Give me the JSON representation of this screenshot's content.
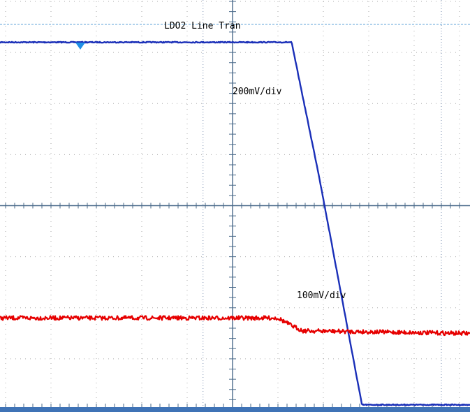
{
  "chart_data": {
    "type": "line",
    "title": "LDO2 Line Tran",
    "annotations": {
      "ch1_scale": "200mV/div",
      "ch2_scale": "100mV/div"
    },
    "x_divisions": 10,
    "y_divisions": 8,
    "grid": true,
    "trigger_marker": "triangle-down",
    "series": [
      {
        "color": "#1a2fb8",
        "x": [
          0,
          6.3,
          6.9,
          7.85,
          10
        ],
        "y": [
          7.2,
          7.2,
          4.6,
          0.1,
          0.1
        ]
      },
      {
        "color": "#e60000",
        "x": [
          0,
          6.0,
          6.3,
          6.55,
          10
        ],
        "y": [
          1.8,
          1.8,
          1.65,
          1.55,
          1.5
        ]
      }
    ],
    "cursor_lines": {
      "x_divs": [
        4.35,
        9.6
      ],
      "h_y_div": 7.55
    }
  },
  "colors": {
    "grid": "#888888",
    "axis": "#4a6a8a",
    "ch1": "#1a2fb8",
    "ch2": "#e60000",
    "cursor_h": "#5aa0d8",
    "cursor_v": "#7a8fb0"
  }
}
